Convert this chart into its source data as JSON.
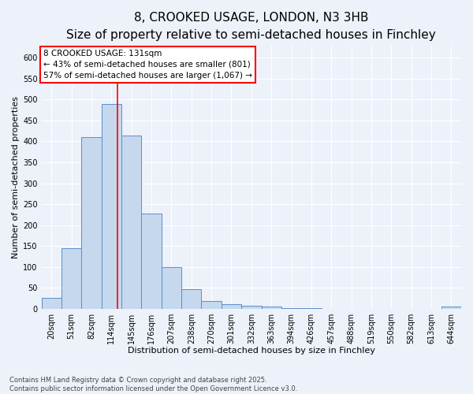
{
  "title": "8, CROOKED USAGE, LONDON, N3 3HB",
  "subtitle": "Size of property relative to semi-detached houses in Finchley",
  "xlabel": "Distribution of semi-detached houses by size in Finchley",
  "ylabel": "Number of semi-detached properties",
  "bar_color": "#c5d8ee",
  "bar_edge_color": "#5b8fc9",
  "background_color": "#edf1f9",
  "grid_color": "#ffffff",
  "bins": [
    "20sqm",
    "51sqm",
    "82sqm",
    "114sqm",
    "145sqm",
    "176sqm",
    "207sqm",
    "238sqm",
    "270sqm",
    "301sqm",
    "332sqm",
    "363sqm",
    "394sqm",
    "426sqm",
    "457sqm",
    "488sqm",
    "519sqm",
    "550sqm",
    "582sqm",
    "613sqm",
    "644sqm"
  ],
  "values": [
    25,
    145,
    410,
    490,
    415,
    228,
    100,
    47,
    18,
    10,
    6,
    4,
    2,
    1,
    0,
    0,
    0,
    0,
    0,
    0,
    5
  ],
  "ylim": [
    0,
    630
  ],
  "yticks": [
    0,
    50,
    100,
    150,
    200,
    250,
    300,
    350,
    400,
    450,
    500,
    550,
    600
  ],
  "red_line_x": 3.3,
  "annotation_title": "8 CROOKED USAGE: 131sqm",
  "annotation_line1": "← 43% of semi-detached houses are smaller (801)",
  "annotation_line2": "57% of semi-detached houses are larger (1,067) →",
  "footer_line1": "Contains HM Land Registry data © Crown copyright and database right 2025.",
  "footer_line2": "Contains public sector information licensed under the Open Government Licence v3.0.",
  "title_fontsize": 11,
  "subtitle_fontsize": 9,
  "axis_label_fontsize": 8,
  "tick_fontsize": 7,
  "annotation_fontsize": 7.5,
  "footer_fontsize": 6
}
